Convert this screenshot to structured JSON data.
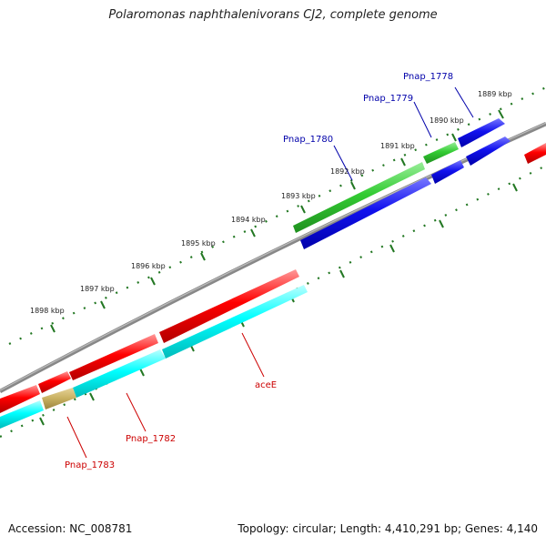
{
  "title": "Polaromonas naphthalenivorans CJ2, complete genome",
  "footer": {
    "accession": "Accession: NC_008781",
    "summary": "Topology: circular; Length: 4,410,291 bp; Genes: 4,140"
  },
  "colors": {
    "backbone": "#888888",
    "ruler": "#227722",
    "forward_label": "#0000aa",
    "reverse_label": "#cc0000",
    "blue": "#0000ee",
    "green": "#33cc33",
    "red": "#ff0000",
    "cyan": "#00ffff",
    "olive": "#c8b060"
  },
  "ruler_labels": [
    {
      "label": "1889 kbp",
      "kbp": 1889
    },
    {
      "label": "1890 kbp",
      "kbp": 1890
    },
    {
      "label": "1891 kbp",
      "kbp": 1891
    },
    {
      "label": "1892 kbp",
      "kbp": 1892
    },
    {
      "label": "1893 kbp",
      "kbp": 1893
    },
    {
      "label": "1894 kbp",
      "kbp": 1894
    },
    {
      "label": "1895 kbp",
      "kbp": 1895
    },
    {
      "label": "1896 kbp",
      "kbp": 1896
    },
    {
      "label": "1897 kbp",
      "kbp": 1897
    },
    {
      "label": "1898 kbp",
      "kbp": 1898
    }
  ],
  "gene_labels": [
    {
      "name": "Pnap_1778",
      "strand": "forward"
    },
    {
      "name": "Pnap_1779",
      "strand": "forward"
    },
    {
      "name": "Pnap_1780",
      "strand": "forward"
    },
    {
      "name": "aceE",
      "strand": "reverse"
    },
    {
      "name": "Pnap_1782",
      "strand": "reverse"
    },
    {
      "name": "Pnap_1783",
      "strand": "reverse"
    }
  ]
}
